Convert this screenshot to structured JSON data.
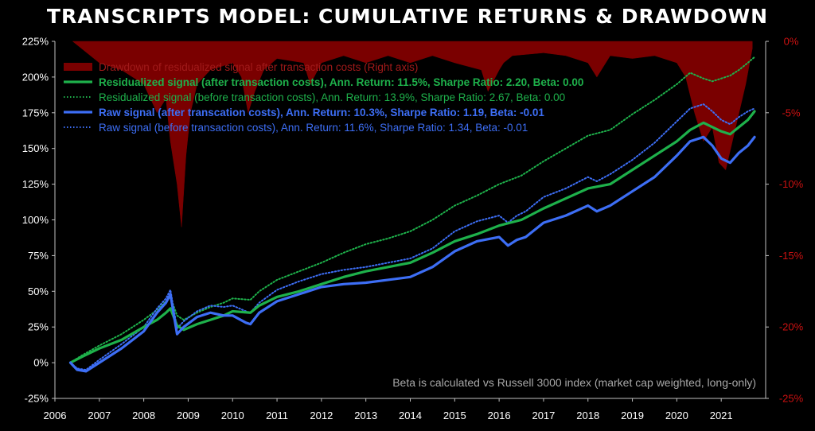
{
  "chart_data": {
    "type": "line",
    "title": "TRANSCRIPTS MODEL: CUMULATIVE RETURNS & DRAWDOWN",
    "note": "Beta is calculated vs Russell 3000 index (market cap weighted, long-only)",
    "x_ticks": [
      "2006",
      "2007",
      "2008",
      "2009",
      "2010",
      "2011",
      "2012",
      "2013",
      "2014",
      "2015",
      "2016",
      "2017",
      "2018",
      "2019",
      "2020",
      "2021"
    ],
    "xlim": [
      2006,
      2022
    ],
    "y_left": {
      "ticks": [
        "-25%",
        "0%",
        "25%",
        "50%",
        "75%",
        "100%",
        "125%",
        "150%",
        "175%",
        "200%",
        "225%"
      ],
      "ylim": [
        -25,
        225
      ],
      "unit": "%"
    },
    "y_right": {
      "ticks": [
        "0%",
        "-5%",
        "-10%",
        "-15%",
        "-20%",
        "-25%"
      ],
      "ylim": [
        -25,
        0
      ],
      "unit": "%"
    },
    "legend_placement": "top-left",
    "grid": false,
    "series": [
      {
        "name": "Drawdown of residualized signal after transaction costs (Right axis)",
        "axis": "right",
        "style": "area",
        "color": "#7a0000",
        "x": [
          2006.4,
          2007.0,
          2007.5,
          2008.0,
          2008.3,
          2008.5,
          2008.6,
          2008.75,
          2008.85,
          2008.95,
          2009.05,
          2009.2,
          2009.5,
          2010.0,
          2010.2,
          2010.35,
          2010.5,
          2010.7,
          2011.0,
          2011.6,
          2011.75,
          2012.0,
          2012.5,
          2013.0,
          2013.5,
          2014.0,
          2014.5,
          2015.0,
          2015.6,
          2015.75,
          2016.0,
          2016.1,
          2016.3,
          2017.0,
          2017.5,
          2018.0,
          2018.2,
          2018.5,
          2019.0,
          2019.5,
          2020.0,
          2020.2,
          2020.4,
          2020.6,
          2020.8,
          2020.95,
          2021.1,
          2021.25,
          2021.4,
          2021.55,
          2021.7
        ],
        "y": [
          0,
          -1.5,
          -2,
          -3,
          -5,
          -4,
          -7,
          -10,
          -13,
          -8,
          -5,
          -3,
          -2,
          -1.5,
          -2.5,
          -5,
          -3.5,
          -2,
          -1.2,
          -1.5,
          -3,
          -1.5,
          -1,
          -1.5,
          -1,
          -1.5,
          -1,
          -1.5,
          -2,
          -3.5,
          -2,
          -1.5,
          -1,
          -0.8,
          -1,
          -1.5,
          -2.5,
          -1,
          -1.2,
          -1,
          -1.5,
          -2.5,
          -5,
          -7,
          -6,
          -8.5,
          -9,
          -7,
          -5,
          -3,
          -0.5
        ]
      },
      {
        "name": "Residualized signal (after transaction costs), Ann. Return: 11.5%, Sharpe Ratio:  2.20, Beta: 0.00",
        "axis": "left",
        "style": "solid",
        "color": "#1eb14b",
        "x": [
          2006.35,
          2006.6,
          2007.0,
          2007.5,
          2008.0,
          2008.3,
          2008.5,
          2008.6,
          2008.75,
          2008.9,
          2009.2,
          2009.5,
          2009.8,
          2010.0,
          2010.4,
          2010.6,
          2011.0,
          2011.5,
          2012.0,
          2012.5,
          2013.0,
          2013.5,
          2014.0,
          2014.5,
          2015.0,
          2015.5,
          2016.0,
          2016.5,
          2017.0,
          2017.5,
          2018.0,
          2018.5,
          2019.0,
          2019.5,
          2020.0,
          2020.3,
          2020.6,
          2020.8,
          2021.0,
          2021.2,
          2021.4,
          2021.6,
          2021.75
        ],
        "y": [
          0,
          4,
          10,
          16,
          25,
          30,
          35,
          38,
          26,
          23,
          27,
          30,
          33,
          36,
          35,
          40,
          46,
          50,
          55,
          60,
          64,
          67,
          70,
          77,
          85,
          90,
          96,
          100,
          108,
          115,
          122,
          125,
          135,
          145,
          155,
          163,
          168,
          165,
          162,
          160,
          165,
          170,
          176
        ]
      },
      {
        "name": "Residualized signal (before transaction costs), Ann. Return: 13.9%, Sharpe Ratio:  2.67, Beta: 0.00",
        "axis": "left",
        "style": "dotted",
        "color": "#1eb14b",
        "x": [
          2006.35,
          2006.6,
          2007.0,
          2007.5,
          2008.0,
          2008.3,
          2008.5,
          2008.6,
          2008.75,
          2008.9,
          2009.2,
          2009.5,
          2009.8,
          2010.0,
          2010.4,
          2010.6,
          2011.0,
          2011.5,
          2012.0,
          2012.5,
          2013.0,
          2013.5,
          2014.0,
          2014.5,
          2015.0,
          2015.5,
          2016.0,
          2016.5,
          2017.0,
          2017.5,
          2018.0,
          2018.5,
          2019.0,
          2019.5,
          2020.0,
          2020.3,
          2020.6,
          2020.8,
          2021.0,
          2021.2,
          2021.4,
          2021.6,
          2021.75
        ],
        "y": [
          0,
          5,
          12,
          20,
          30,
          37,
          43,
          46,
          33,
          30,
          35,
          39,
          42,
          45,
          44,
          50,
          58,
          64,
          70,
          77,
          83,
          87,
          92,
          100,
          110,
          117,
          125,
          131,
          141,
          150,
          159,
          163,
          174,
          184,
          195,
          203,
          199,
          197,
          199,
          201,
          205,
          210,
          214
        ]
      },
      {
        "name": "Raw signal (after transcation costs), Ann. Return: 10.3%, Sharpe Ratio:  1.19, Beta: -0.01",
        "axis": "left",
        "style": "solid",
        "color": "#3d6ef5",
        "x": [
          2006.35,
          2006.5,
          2006.7,
          2007.0,
          2007.5,
          2008.0,
          2008.3,
          2008.5,
          2008.6,
          2008.75,
          2008.9,
          2009.2,
          2009.5,
          2009.8,
          2010.0,
          2010.3,
          2010.4,
          2010.6,
          2011.0,
          2011.5,
          2012.0,
          2012.5,
          2013.0,
          2013.5,
          2014.0,
          2014.5,
          2015.0,
          2015.5,
          2016.0,
          2016.2,
          2016.4,
          2016.6,
          2017.0,
          2017.5,
          2018.0,
          2018.2,
          2018.5,
          2019.0,
          2019.5,
          2020.0,
          2020.3,
          2020.6,
          2020.8,
          2021.0,
          2021.2,
          2021.4,
          2021.6,
          2021.75
        ],
        "y": [
          0,
          -5,
          -6,
          0,
          10,
          22,
          35,
          42,
          48,
          20,
          25,
          32,
          35,
          33,
          33,
          28,
          27,
          35,
          43,
          48,
          53,
          55,
          56,
          58,
          60,
          67,
          78,
          85,
          88,
          82,
          86,
          88,
          98,
          103,
          110,
          106,
          110,
          120,
          130,
          145,
          155,
          158,
          152,
          143,
          140,
          147,
          152,
          158
        ]
      },
      {
        "name": "Raw signal (before transaction costs), Ann. Return: 11.6%, Sharpe Ratio:  1.34, Beta: -0.01",
        "axis": "left",
        "style": "dotted",
        "color": "#3d6ef5",
        "x": [
          2006.35,
          2006.5,
          2006.7,
          2007.0,
          2007.5,
          2008.0,
          2008.3,
          2008.5,
          2008.6,
          2008.75,
          2008.9,
          2009.2,
          2009.5,
          2009.8,
          2010.0,
          2010.3,
          2010.4,
          2010.6,
          2011.0,
          2011.5,
          2012.0,
          2012.5,
          2013.0,
          2013.5,
          2014.0,
          2014.5,
          2015.0,
          2015.5,
          2016.0,
          2016.2,
          2016.4,
          2016.6,
          2017.0,
          2017.5,
          2018.0,
          2018.2,
          2018.5,
          2019.0,
          2019.5,
          2020.0,
          2020.3,
          2020.6,
          2020.8,
          2021.0,
          2021.2,
          2021.4,
          2021.6,
          2021.75
        ],
        "y": [
          0,
          -4,
          -5,
          2,
          13,
          25,
          38,
          45,
          51,
          24,
          29,
          36,
          40,
          39,
          40,
          36,
          35,
          42,
          51,
          57,
          62,
          65,
          67,
          70,
          73,
          80,
          92,
          99,
          103,
          98,
          103,
          106,
          116,
          122,
          130,
          127,
          132,
          142,
          154,
          169,
          178,
          181,
          176,
          170,
          167,
          172,
          176,
          178
        ]
      }
    ]
  }
}
